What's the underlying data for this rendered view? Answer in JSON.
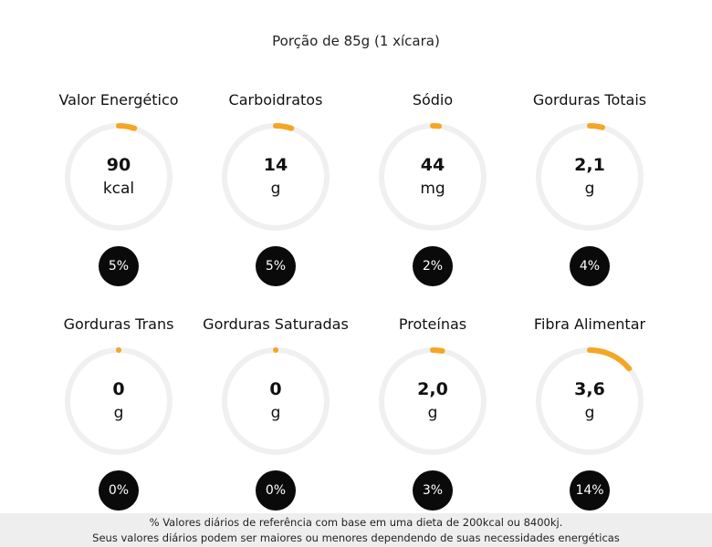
{
  "portion": "Porção de 85g (1 xícara)",
  "colors": {
    "track": "#f0f0f0",
    "accent": "#f5a623",
    "badge": "#0a0a0a"
  },
  "nutrients": [
    {
      "label": "Valor Energético",
      "value": "90",
      "unit": "kcal",
      "daily": "5%",
      "daily_fraction": 0.05
    },
    {
      "label": "Carboidratos",
      "value": "14",
      "unit": "g",
      "daily": "5%",
      "daily_fraction": 0.05
    },
    {
      "label": "Sódio",
      "value": "44",
      "unit": "mg",
      "daily": "2%",
      "daily_fraction": 0.02
    },
    {
      "label": "Gorduras Totais",
      "value": "2,1",
      "unit": "g",
      "daily": "4%",
      "daily_fraction": 0.04
    },
    {
      "label": "Gorduras Trans",
      "value": "0",
      "unit": "g",
      "daily": "0%",
      "daily_fraction": 0.0
    },
    {
      "label": "Gorduras Saturadas",
      "value": "0",
      "unit": "g",
      "daily": "0%",
      "daily_fraction": 0.0
    },
    {
      "label": "Proteínas",
      "value": "2,0",
      "unit": "g",
      "daily": "3%",
      "daily_fraction": 0.03
    },
    {
      "label": "Fibra Alimentar",
      "value": "3,6",
      "unit": "g",
      "daily": "14%",
      "daily_fraction": 0.14
    }
  ],
  "footer": {
    "line1": "% Valores diários de referência com base em uma dieta de 200kcal ou 8400kj.",
    "line2": "Seus valores diários podem ser maiores ou menores dependendo de suas necessidades energéticas"
  }
}
